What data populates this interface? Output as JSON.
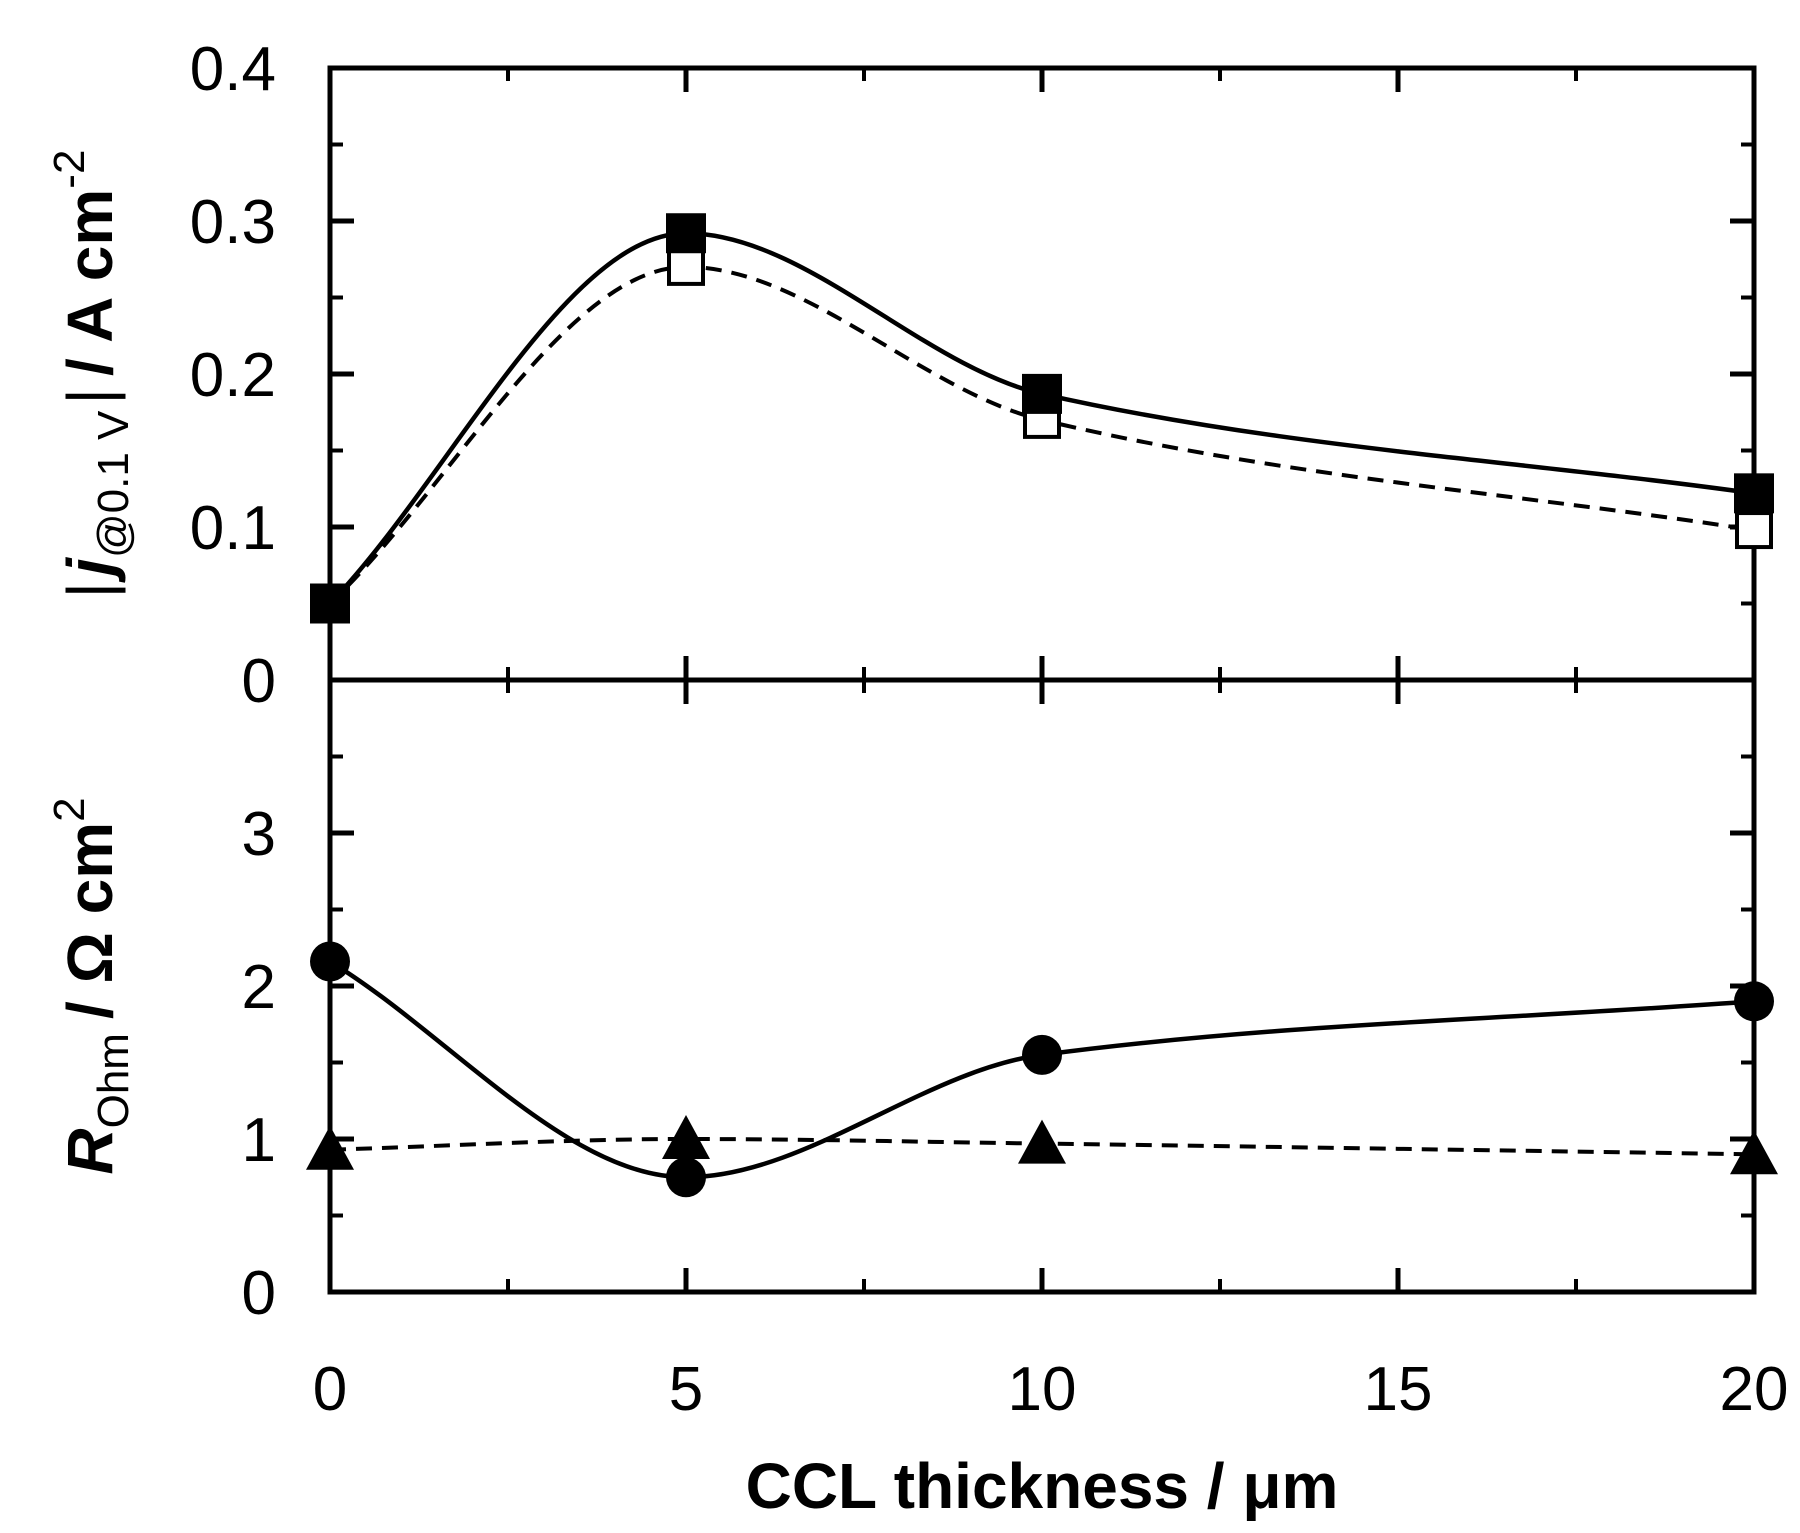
{
  "chart_data": [
    {
      "type": "line",
      "panel": "top",
      "x": [
        0,
        5,
        10,
        20
      ],
      "ylim": [
        0,
        0.4
      ],
      "xlim": [
        0,
        20
      ],
      "yticks": [
        "0",
        "0.1",
        "0.2",
        "0.3",
        "0.4"
      ],
      "yticks_values": [
        0,
        0.1,
        0.2,
        0.3,
        0.4
      ],
      "ylabel": {
        "bar_left": "|",
        "j": "j",
        "sub": "@0.1 V",
        "bar_right": "|",
        "rest": "/ A cm",
        "sup": "-2"
      },
      "series": [
        {
          "name": "filled squares (solid line)",
          "marker": "square-filled",
          "line": "solid",
          "values": [
            0.05,
            0.292,
            0.187,
            0.122
          ]
        },
        {
          "name": "open squares (dashed line)",
          "marker": "square-open",
          "line": "dashed",
          "values": [
            0.05,
            0.27,
            0.17,
            0.098
          ]
        }
      ]
    },
    {
      "type": "line",
      "panel": "bottom",
      "x": [
        0,
        5,
        10,
        20
      ],
      "ylim": [
        0,
        4
      ],
      "xlim": [
        0,
        20
      ],
      "yticks": [
        "0",
        "1",
        "2",
        "3"
      ],
      "yticks_values": [
        0,
        1,
        2,
        3
      ],
      "ylabel": {
        "R": "R",
        "sub": "Ohm",
        "rest": "/ Ω cm",
        "sup": "2"
      },
      "series": [
        {
          "name": "filled circles (solid line)",
          "marker": "circle-filled",
          "line": "solid",
          "values": [
            2.16,
            0.75,
            1.55,
            1.9
          ]
        },
        {
          "name": "filled triangles (dashed line)",
          "marker": "triangle-filled",
          "line": "dashed",
          "values": [
            0.93,
            1.0,
            0.97,
            0.9
          ]
        }
      ]
    }
  ],
  "xaxis": {
    "ticks": [
      "0",
      "5",
      "10",
      "15",
      "20"
    ],
    "ticks_values": [
      0,
      5,
      10,
      15,
      20
    ],
    "label": "CCL thickness / μm"
  }
}
